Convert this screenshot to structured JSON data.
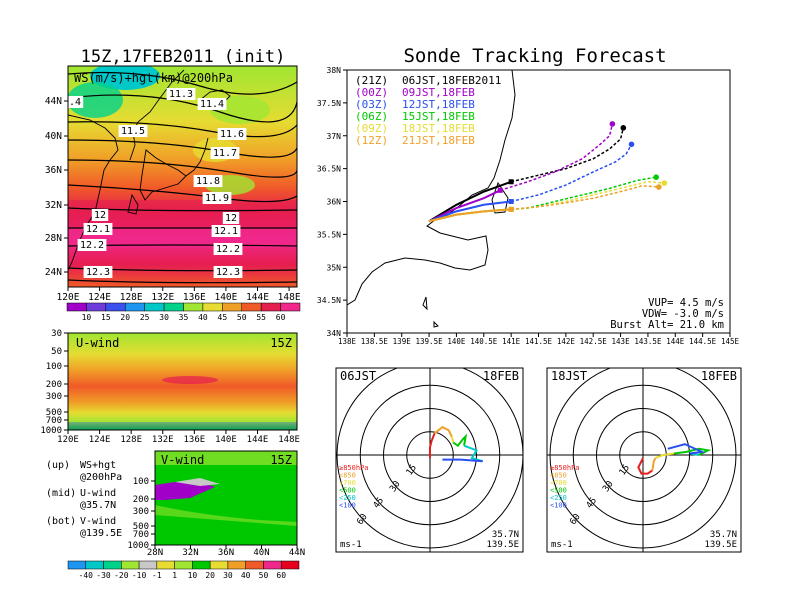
{
  "left": {
    "title": "15Z,17FEB2011 (init)",
    "map": {
      "label": "WS(m/s)+hgt(km)@200hPa",
      "xticks": [
        "120E",
        "124E",
        "128E",
        "132E",
        "136E",
        "140E",
        "144E",
        "148E"
      ],
      "yticks": [
        "24N",
        "28N",
        "32N",
        "36N",
        "40N",
        "44N"
      ],
      "contour_labels": [
        "11.3",
        "11.4",
        ".4",
        "11.5",
        "11.6",
        "11.7",
        "11.8",
        "11.9",
        "12",
        "12",
        "12.1",
        "12.1",
        "12.2",
        "12.2",
        "12.3",
        "12.3"
      ],
      "colorbar": [
        "10",
        "15",
        "20",
        "25",
        "30",
        "35",
        "40",
        "45",
        "50",
        "55",
        "60"
      ],
      "colorbar_colors": [
        "#a000c8",
        "#6e3cdc",
        "#3c50f0",
        "#1e96f0",
        "#00c8c8",
        "#00d28c",
        "#a0e632",
        "#e6dc32",
        "#f0a028",
        "#f05a28",
        "#e61e50",
        "#f0288c"
      ]
    },
    "uwind": {
      "label": "U-wind",
      "time": "15Z",
      "yticks": [
        "30",
        "50",
        "100",
        "200",
        "300",
        "500",
        "700",
        "1000"
      ],
      "xticks": [
        "120E",
        "124E",
        "128E",
        "132E",
        "136E",
        "140E",
        "144E",
        "148E"
      ]
    },
    "vwind": {
      "label": "V-wind",
      "time": "15Z",
      "yticks": [
        "100",
        "200",
        "300",
        "500",
        "700",
        "1000"
      ],
      "xticks": [
        "28N",
        "32N",
        "36N",
        "40N",
        "44N"
      ],
      "colorbar": [
        "-40",
        "-30",
        "-20",
        "-10",
        "-1",
        "1",
        "10",
        "20",
        "30",
        "40",
        "50",
        "60"
      ],
      "colorbar_colors": [
        "#1e96f0",
        "#00c8c8",
        "#00d28c",
        "#a0e632",
        "#c8c8c8",
        "#e6dc32",
        "#a0e632",
        "#00c800",
        "#e6dc32",
        "#f0a028",
        "#f05a28",
        "#f0288c",
        "#e6001e"
      ]
    },
    "notes": [
      {
        "a": "(up)",
        "b": "WS+hgt",
        "c": "@200hPa"
      },
      {
        "a": "(mid)",
        "b": "U-wind",
        "c": "@35.7N"
      },
      {
        "a": "(bot)",
        "b": "V-wind",
        "c": "@139.5E"
      }
    ]
  },
  "right": {
    "title": "Sonde Tracking Forecast",
    "legend": [
      {
        "code": "(21Z)",
        "time": "06JST,18FEB2011",
        "color": "#000000"
      },
      {
        "code": "(00Z)",
        "time": "09JST,18FEB",
        "color": "#a000c8"
      },
      {
        "code": "(03Z)",
        "time": "12JST,18FEB",
        "color": "#2850f0"
      },
      {
        "code": "(06Z)",
        "time": "15JST,18FEB",
        "color": "#00c800"
      },
      {
        "code": "(09Z)",
        "time": "18JST,18FEB",
        "color": "#e6dc32"
      },
      {
        "code": "(12Z)",
        "time": "21JST,18FEB",
        "color": "#f0a028"
      }
    ],
    "xticks": [
      "138E",
      "138.5E",
      "139E",
      "139.5E",
      "140E",
      "140.5E",
      "141E",
      "141.5E",
      "142E",
      "142.5E",
      "143E",
      "143.5E",
      "144E",
      "144.5E",
      "145E"
    ],
    "yticks": [
      "34N",
      "34.5N",
      "35N",
      "35.5N",
      "36N",
      "36.5N",
      "37N",
      "37.5N",
      "38N"
    ],
    "params": [
      "VUP=  4.5 m/s",
      "VDW= -3.0 m/s",
      "Burst Alt= 21.0 km"
    ],
    "hodo1": {
      "time": "06JST",
      "date": "18FEB",
      "ms": "ms-1",
      "lat": "35.7N",
      "lon": "139.5E"
    },
    "hodo2": {
      "time": "18JST",
      "date": "18FEB",
      "ms": "ms-1",
      "lat": "35.7N",
      "lon": "139.5E"
    },
    "ring_labels": [
      "15",
      "30",
      "45",
      "60"
    ],
    "levels": [
      {
        "label": "≥850hPa",
        "color": "#e61e1e"
      },
      {
        "label": "<850",
        "color": "#f0a028"
      },
      {
        "label": "<700",
        "color": "#e6dc32"
      },
      {
        "label": "<500",
        "color": "#00c800"
      },
      {
        "label": "<250",
        "color": "#00c8c8"
      },
      {
        "label": "<100",
        "color": "#2850f0"
      }
    ]
  },
  "chart_data": [
    {
      "type": "line",
      "title": "Sonde Tracking Forecast",
      "xlabel": "",
      "ylabel": "",
      "xlim": [
        138,
        145
      ],
      "ylim": [
        34,
        38
      ],
      "series": [
        {
          "name": "(21Z) 06JST,18FEB2011",
          "color": "#000000",
          "x": [
            139.5,
            140.0,
            140.5,
            141.0,
            141.5,
            142.0,
            142.5,
            142.8,
            143.0,
            143.05
          ],
          "y": [
            35.7,
            35.95,
            36.15,
            36.3,
            36.4,
            36.5,
            36.65,
            36.8,
            36.95,
            37.12
          ]
        },
        {
          "name": "(00Z) 09JST,18FEB",
          "color": "#a000c8",
          "x": [
            139.5,
            140.0,
            140.5,
            140.8,
            141.3,
            141.8,
            142.3,
            142.6,
            142.8,
            142.85
          ],
          "y": [
            35.7,
            35.9,
            36.05,
            36.17,
            36.3,
            36.45,
            36.65,
            36.85,
            37.0,
            37.18
          ]
        },
        {
          "name": "(03Z) 12JST,18FEB",
          "color": "#2850f0",
          "x": [
            139.5,
            140.0,
            140.5,
            141.0,
            141.5,
            142.0,
            142.5,
            142.9,
            143.1,
            143.2
          ],
          "y": [
            35.7,
            35.85,
            35.95,
            36.0,
            36.1,
            36.25,
            36.45,
            36.6,
            36.72,
            36.87
          ]
        },
        {
          "name": "(06Z) 15JST,18FEB",
          "color": "#00c800",
          "x": [
            139.5,
            140.0,
            140.5,
            141.0,
            141.3,
            141.8,
            142.3,
            142.8,
            143.3,
            143.65
          ],
          "y": [
            35.7,
            35.8,
            35.85,
            35.88,
            35.9,
            36.0,
            36.1,
            36.2,
            36.32,
            36.37
          ]
        },
        {
          "name": "(09Z) 18JST,18FEB",
          "color": "#e6dc32",
          "x": [
            139.5,
            140.0,
            140.5,
            141.0,
            141.5,
            142.0,
            142.5,
            143.0,
            143.5,
            143.8
          ],
          "y": [
            35.7,
            35.8,
            35.85,
            35.88,
            35.92,
            36.0,
            36.1,
            36.2,
            36.3,
            36.28
          ]
        },
        {
          "name": "(12Z) 21JST,18FEB",
          "color": "#f0a028",
          "x": [
            139.5,
            140.0,
            140.5,
            141.0,
            141.5,
            142.0,
            142.5,
            143.0,
            143.4,
            143.7
          ],
          "y": [
            35.7,
            35.8,
            35.85,
            35.88,
            35.92,
            35.98,
            36.05,
            36.15,
            36.24,
            36.22
          ]
        }
      ]
    },
    {
      "type": "line",
      "title": "06JST 18FEB hodograph",
      "xlabel": "ms-1",
      "ylabel": "",
      "rings": [
        15,
        30,
        45,
        60
      ],
      "series": [
        {
          "name": "≥850hPa",
          "color": "#e61e1e",
          "u": [
            0,
            0,
            1,
            3
          ],
          "v": [
            -2,
            5,
            9,
            14
          ]
        },
        {
          "name": "<850",
          "color": "#f0a028",
          "u": [
            3,
            8,
            12,
            14
          ],
          "v": [
            14,
            18,
            16,
            12
          ]
        },
        {
          "name": "<700",
          "color": "#e6dc32",
          "u": [
            14,
            15
          ],
          "v": [
            12,
            8
          ]
        },
        {
          "name": "<500",
          "color": "#00c800",
          "u": [
            15,
            18,
            21,
            23,
            22
          ],
          "v": [
            8,
            6,
            10,
            12,
            6
          ]
        },
        {
          "name": "<250",
          "color": "#00c8c8",
          "u": [
            22,
            30,
            27,
            34
          ],
          "v": [
            6,
            3,
            -2,
            -4
          ]
        },
        {
          "name": "<100",
          "color": "#2850f0",
          "u": [
            34,
            20,
            8
          ],
          "v": [
            -4,
            -3,
            -3
          ]
        }
      ]
    },
    {
      "type": "line",
      "title": "18JST 18FEB hodograph",
      "xlabel": "ms-1",
      "ylabel": "",
      "rings": [
        15,
        30,
        45,
        60
      ],
      "series": [
        {
          "name": "≥850hPa",
          "color": "#e61e1e",
          "u": [
            0,
            -3,
            -1,
            3,
            6
          ],
          "v": [
            -2,
            -8,
            -12,
            -12,
            -10
          ]
        },
        {
          "name": "<850",
          "color": "#f0a028",
          "u": [
            6,
            7,
            8
          ],
          "v": [
            -10,
            -4,
            -2
          ]
        },
        {
          "name": "<700",
          "color": "#e6dc32",
          "u": [
            8,
            13,
            20
          ],
          "v": [
            -2,
            0,
            1
          ]
        },
        {
          "name": "<500",
          "color": "#00c800",
          "u": [
            20,
            28,
            36,
            42,
            36
          ],
          "v": [
            1,
            2,
            4,
            3,
            0
          ]
        },
        {
          "name": "<250",
          "color": "#00c8c8",
          "u": [
            36,
            30
          ],
          "v": [
            0,
            1
          ]
        },
        {
          "name": "<100",
          "color": "#2850f0",
          "u": [
            30,
            38,
            27,
            16
          ],
          "v": [
            1,
            2,
            7,
            4
          ]
        }
      ]
    }
  ]
}
